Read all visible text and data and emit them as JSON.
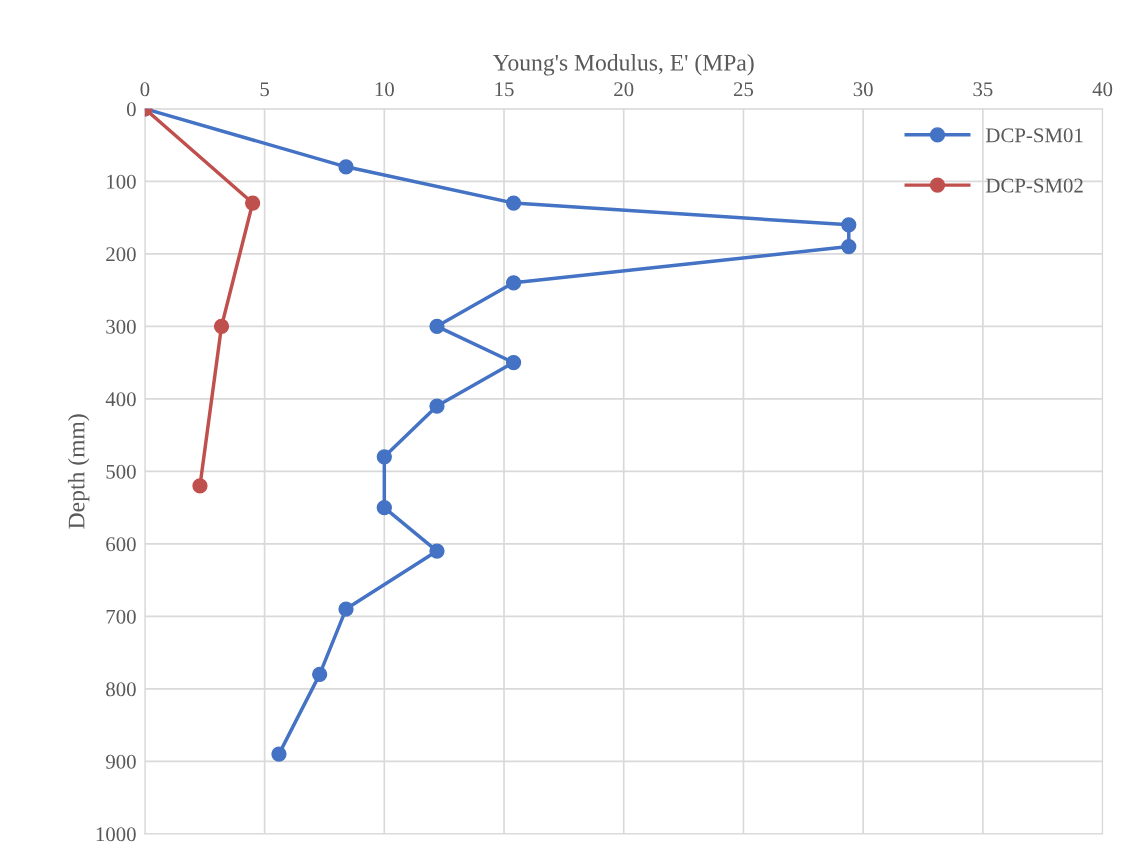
{
  "chart_data": {
    "type": "line",
    "xlabel": "Young's Modulus, E' (MPa)",
    "ylabel": "Depth (mm)",
    "xlim": [
      0,
      40
    ],
    "xticks": [
      0,
      5,
      10,
      15,
      20,
      25,
      30,
      35,
      40
    ],
    "ylim": [
      1000,
      0
    ],
    "yticks": [
      0,
      100,
      200,
      300,
      400,
      500,
      600,
      700,
      800,
      900,
      1000
    ],
    "grid": true,
    "legend": "top right",
    "marker": "circle",
    "line_style": "solid",
    "series": [
      {
        "name": "DCP-SM01",
        "color": "#4472c4",
        "x": [
          0,
          8.4,
          15.4,
          29.4,
          29.4,
          15.4,
          12.2,
          15.4,
          12.2,
          10.0,
          10.0,
          12.2,
          8.4,
          7.3,
          5.6
        ],
        "values": [
          0,
          80,
          130,
          160,
          190,
          240,
          300,
          350,
          410,
          480,
          550,
          610,
          690,
          780,
          890
        ]
      },
      {
        "name": "DCP-SM02",
        "color": "#c0504d",
        "x": [
          0,
          4.5,
          3.2,
          2.3
        ],
        "values": [
          0,
          130,
          300,
          520
        ]
      }
    ]
  }
}
